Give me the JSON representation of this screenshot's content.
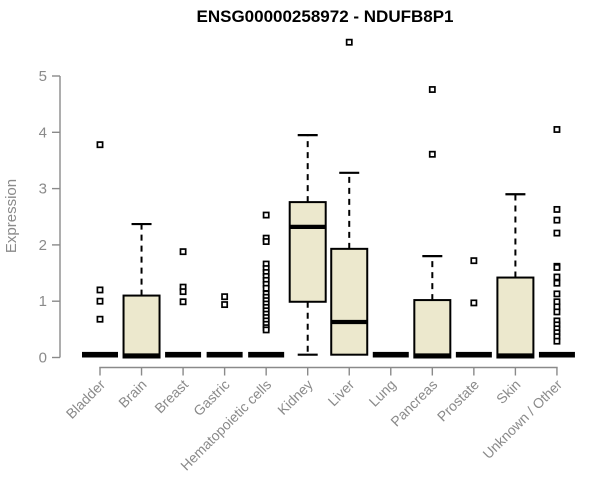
{
  "chart_data": {
    "type": "boxplot",
    "title": "ENSG00000258972 - NDUFB8P1",
    "ylabel": "Expression",
    "xlabel": "",
    "ylim": [
      0,
      5.75
    ],
    "yticks": [
      0,
      1,
      2,
      3,
      4,
      5
    ],
    "grid": false,
    "legend": false,
    "colors": {
      "box_fill": "#ece8cd",
      "box_stroke": "#000000",
      "median": "#000000",
      "outlier_fill": "#ffffff",
      "axis": "#8a8a8a",
      "title": "#000000"
    },
    "categories": [
      {
        "label": "Bladder",
        "q1": 0,
        "median": 0,
        "q3": 0,
        "whisker_low": 0,
        "whisker_high": 0,
        "outliers": [
          3.78,
          1.2,
          1.0,
          0.68
        ]
      },
      {
        "label": "Brain",
        "q1": 0,
        "median": 0,
        "q3": 1.1,
        "whisker_low": 0,
        "whisker_high": 2.37,
        "outliers": []
      },
      {
        "label": "Breast",
        "q1": 0,
        "median": 0,
        "q3": 0,
        "whisker_low": 0,
        "whisker_high": 0,
        "outliers": [
          1.88,
          1.25,
          1.17,
          0.99
        ]
      },
      {
        "label": "Gastric",
        "q1": 0,
        "median": 0,
        "q3": 0,
        "whisker_low": 0,
        "whisker_high": 0,
        "outliers": [
          1.08,
          0.94
        ]
      },
      {
        "label": "Hematopoietic cells",
        "q1": 0,
        "median": 0,
        "q3": 0,
        "whisker_low": 0,
        "whisker_high": 0,
        "outliers": [
          2.53,
          2.12,
          2.06,
          1.66,
          1.58,
          1.51,
          1.44,
          1.37,
          1.3,
          1.23,
          1.13,
          1.07,
          1.01,
          0.95,
          0.89,
          0.83,
          0.77,
          0.71,
          0.65,
          0.59,
          0.53,
          0.49
        ]
      },
      {
        "label": "Kidney",
        "q1": 0.99,
        "median": 2.32,
        "q3": 2.76,
        "whisker_low": 0.05,
        "whisker_high": 3.95,
        "outliers": []
      },
      {
        "label": "Liver",
        "q1": 0.05,
        "median": 0.63,
        "q3": 1.93,
        "whisker_low": 0.05,
        "whisker_high": 3.28,
        "outliers": [
          5.6
        ]
      },
      {
        "label": "Lung",
        "q1": 0,
        "median": 0,
        "q3": 0,
        "whisker_low": 0,
        "whisker_high": 0,
        "outliers": []
      },
      {
        "label": "Pancreas",
        "q1": 0,
        "median": 0,
        "q3": 1.02,
        "whisker_low": 0,
        "whisker_high": 1.8,
        "outliers": [
          4.76,
          3.61
        ]
      },
      {
        "label": "Prostate",
        "q1": 0,
        "median": 0,
        "q3": 0,
        "whisker_low": 0,
        "whisker_high": 0,
        "outliers": [
          1.72,
          0.97
        ]
      },
      {
        "label": "Skin",
        "q1": 0,
        "median": 0,
        "q3": 1.42,
        "whisker_low": 0,
        "whisker_high": 2.9,
        "outliers": []
      },
      {
        "label": "Unknown / Other",
        "q1": 0,
        "median": 0,
        "q3": 0,
        "whisker_low": 0,
        "whisker_high": 0,
        "outliers": [
          4.05,
          2.63,
          2.44,
          2.21,
          1.62,
          1.6,
          1.43,
          1.32,
          1.13,
          0.99,
          0.9,
          0.81,
          0.65,
          0.58,
          0.51,
          0.44,
          0.37,
          0.29
        ]
      }
    ]
  }
}
